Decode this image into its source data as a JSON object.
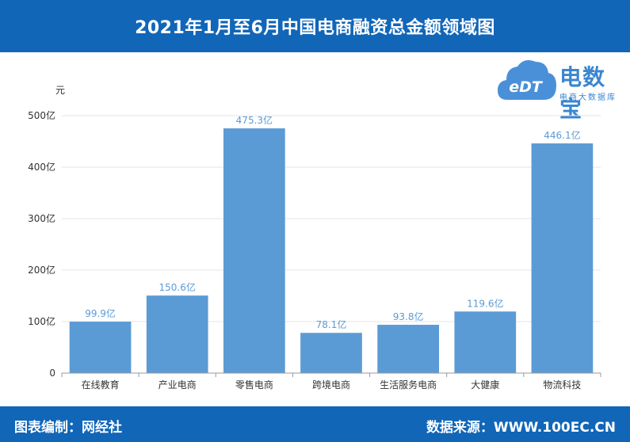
{
  "header": {
    "title": "2021年1月至6月中国电商融资总金额领域图"
  },
  "logo": {
    "name": "电数宝",
    "sub": "电商大数据库",
    "badge": "eDT"
  },
  "footer": {
    "editor": "图表编制：网经社",
    "source": "数据来源：WWW.100EC.CN"
  },
  "chart_data": {
    "type": "bar",
    "categories": [
      "在线教育",
      "产业电商",
      "零售电商",
      "跨境电商",
      "生活服务电商",
      "大健康",
      "物流科技"
    ],
    "values": [
      99.9,
      150.6,
      475.3,
      78.1,
      93.8,
      119.6,
      446.1
    ],
    "data_labels": [
      "99.9亿",
      "150.6亿",
      "475.3亿",
      "78.1亿",
      "93.8亿",
      "119.6亿",
      "446.1亿"
    ],
    "ylabel": "元",
    "ylim": [
      0,
      500
    ],
    "yticks": [
      0,
      100,
      200,
      300,
      400,
      500
    ],
    "ytick_labels": [
      "0",
      "100亿",
      "200亿",
      "300亿",
      "400亿",
      "500亿"
    ],
    "bar_color": "#5b9bd5",
    "label_color": "#5b9bd5",
    "grid": true,
    "legend": "none"
  }
}
